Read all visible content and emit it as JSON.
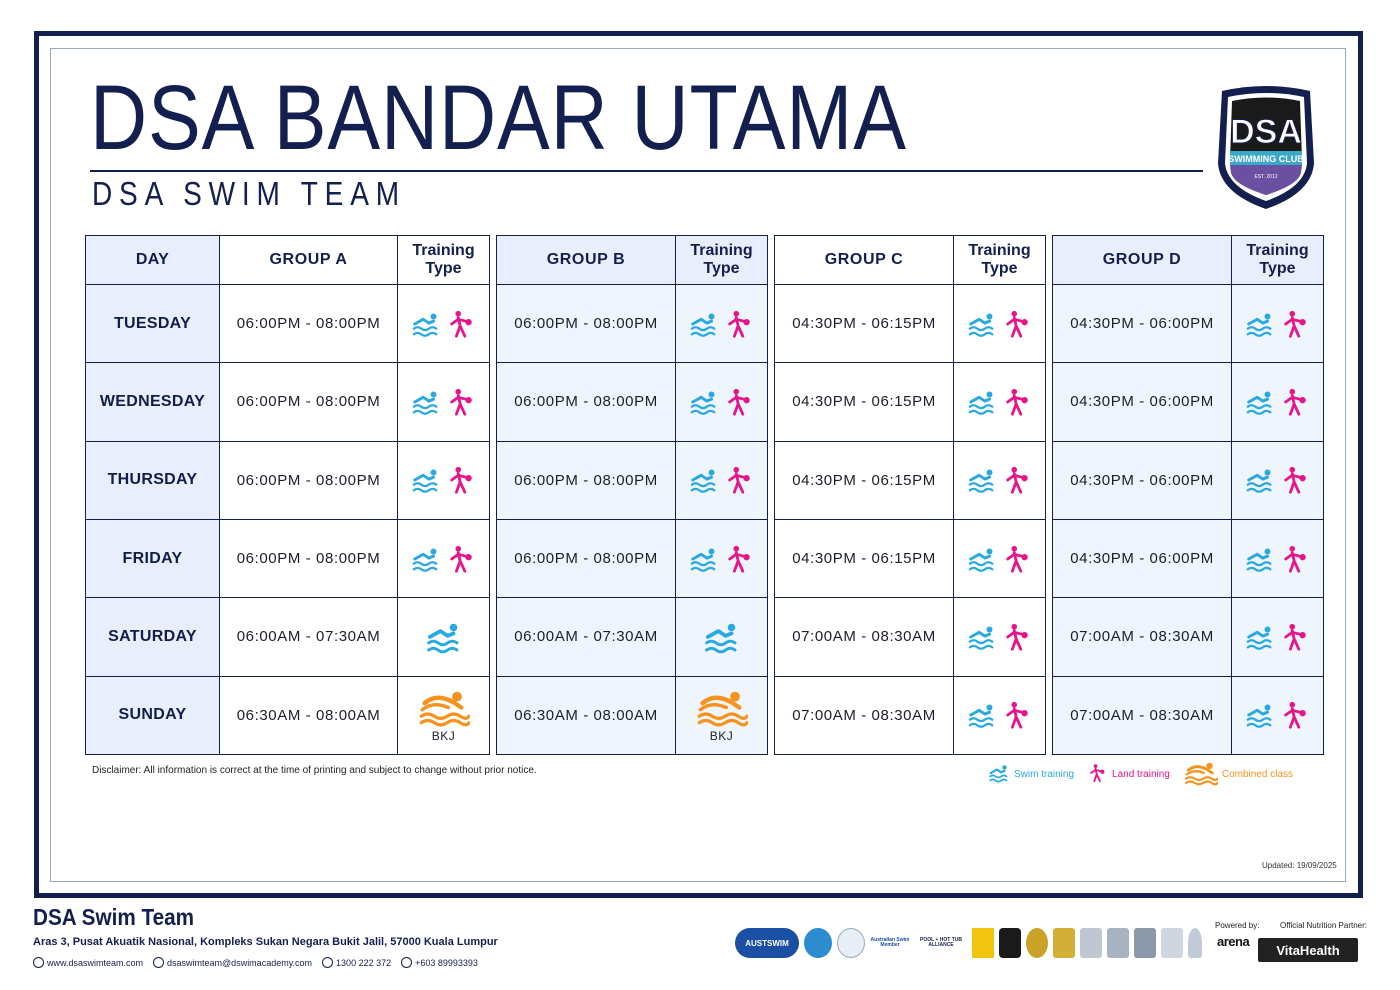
{
  "header": {
    "title": "DSA BANDAR UTAMA",
    "subtitle": "DSA SWIM TEAM",
    "logo_text": "DSA",
    "logo_banner": "SWIMMING CLUB",
    "logo_est": "EST. 2012"
  },
  "colors": {
    "navy": "#13204f",
    "swim": "#29a9e1",
    "land": "#e6158c",
    "combined": "#f6921e"
  },
  "table": {
    "headers": {
      "day": "DAY",
      "training_type": "Training Type",
      "groups": [
        "GROUP A",
        "GROUP B",
        "GROUP C",
        "GROUP D"
      ]
    },
    "rows": [
      {
        "day": "TUESDAY",
        "A": "06:00PM - 08:00PM",
        "B": "06:00PM - 08:00PM",
        "C": "04:30PM - 06:15PM",
        "D": "04:30PM - 06:00PM"
      },
      {
        "day": "WEDNESDAY",
        "A": "06:00PM - 08:00PM",
        "B": "06:00PM - 08:00PM",
        "C": "04:30PM - 06:15PM",
        "D": "04:30PM - 06:00PM"
      },
      {
        "day": "THURSDAY",
        "A": "06:00PM - 08:00PM",
        "B": "06:00PM - 08:00PM",
        "C": "04:30PM - 06:15PM",
        "D": "04:30PM - 06:00PM"
      },
      {
        "day": "FRIDAY",
        "A": "06:00PM - 08:00PM",
        "B": "06:00PM - 08:00PM",
        "C": "04:30PM - 06:15PM",
        "D": "04:30PM - 06:00PM"
      },
      {
        "day": "SATURDAY",
        "A": "06:00AM - 07:30AM",
        "B": "06:00AM - 07:30AM",
        "C": "07:00AM - 08:30AM",
        "D": "07:00AM - 08:30AM"
      },
      {
        "day": "SUNDAY",
        "A": "06:30AM - 08:00AM",
        "B": "06:30AM - 08:00AM",
        "C": "07:00AM - 08:30AM",
        "D": "07:00AM - 08:30AM"
      }
    ],
    "bkj_label": "BKJ"
  },
  "disclaimer": "Disclaimer: All information is correct at the time of printing and subject to change without prior notice.",
  "legend": {
    "swim": "Swim training",
    "land": "Land training",
    "combined": "Combined class"
  },
  "updated": "Updated: 19/09/2025",
  "footer": {
    "title": "DSA Swim Team",
    "address": "Aras 3, Pusat Akuatik Nasional, Kompleks Sukan Negara Bukit Jalil, 57000 Kuala Lumpur",
    "website": "www.dsaswimteam.com",
    "email": "dsaswimteam@dswimacademy.com",
    "phone1": "1300 222 372",
    "phone2": "+603 89993393",
    "powered_by": "Powered by:",
    "arena": "arena",
    "nutrition_partner": "Official Nutrition Partner:",
    "vitahealth": "VitaHealth",
    "austswim": "AUSTSWIM",
    "australian_swim": "Australian Swim Member",
    "pool_alliance": "POOL + HOT TUB ALLIANCE"
  }
}
